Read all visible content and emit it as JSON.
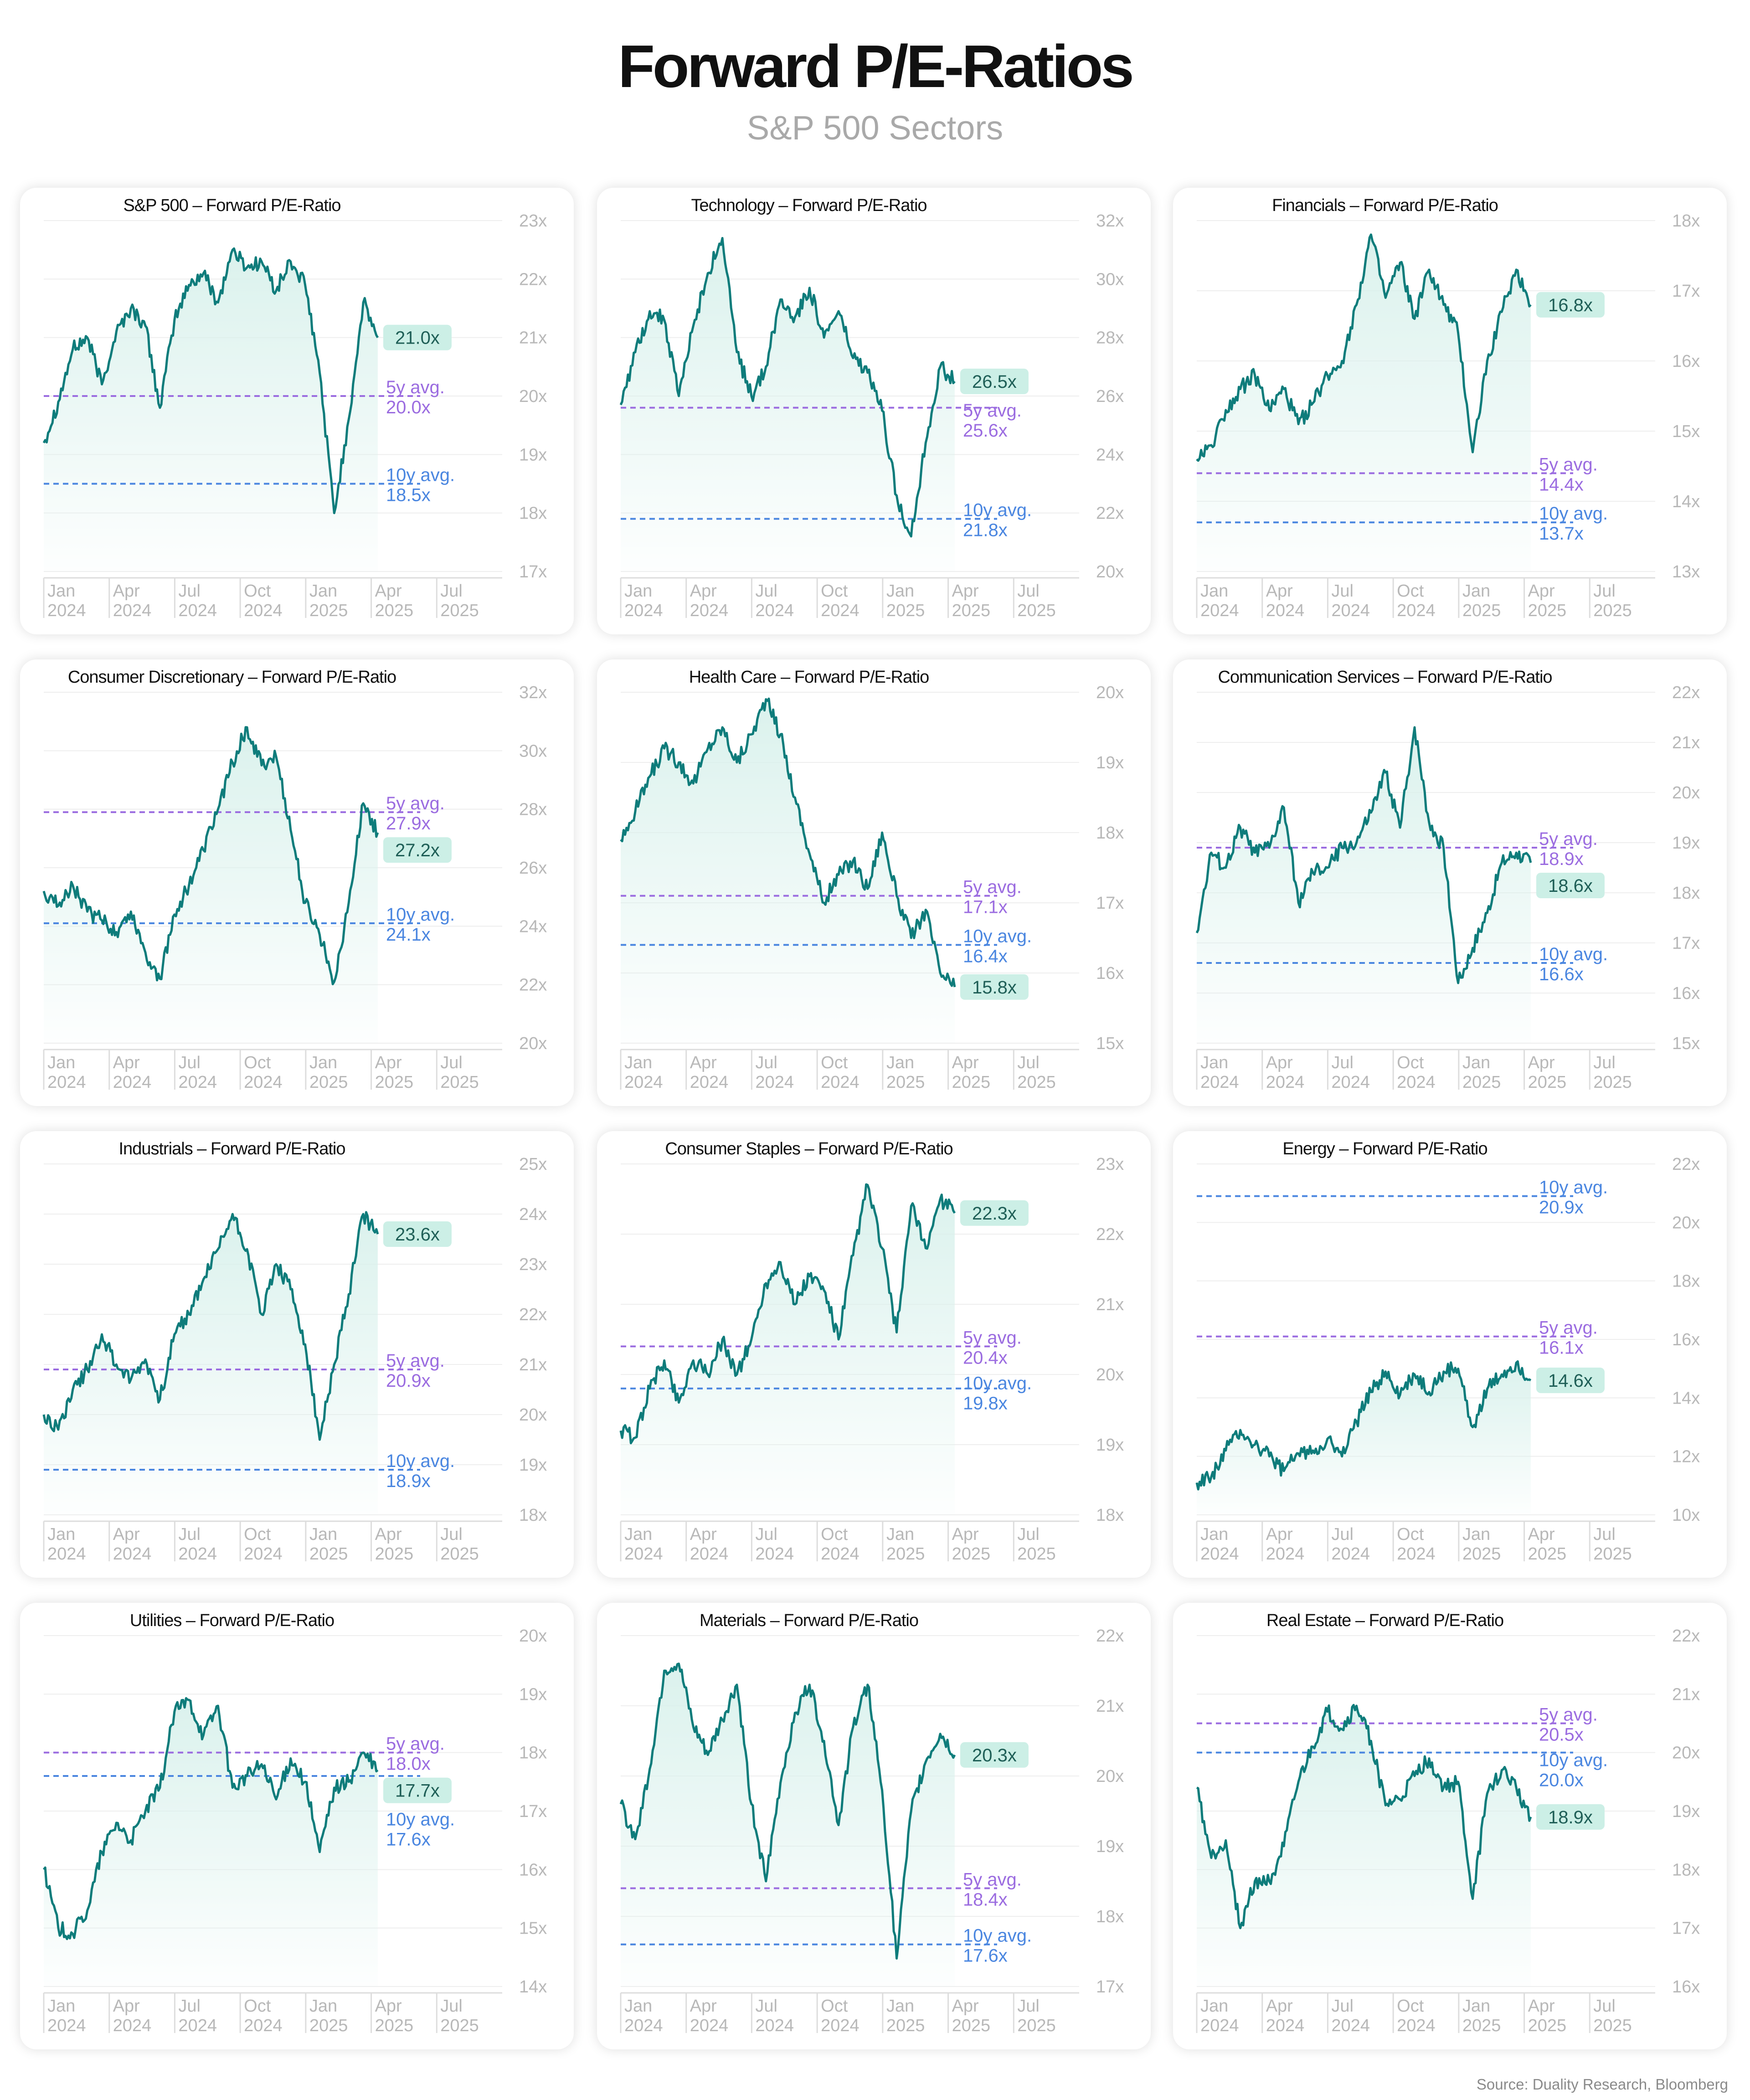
{
  "title": "Forward P/E-Ratios",
  "subtitle": "S&P 500 Sectors",
  "source": "Source: Duality Research, Bloomberg",
  "colors": {
    "line": "#0e7c7b",
    "fill": "#d9f1ec",
    "avg5": "#9b6ce0",
    "avg10": "#4a86e0",
    "value_badge_bg": "#ccefe6",
    "axis_text": "#b8b8b8"
  },
  "x_axis": {
    "ticks": [
      {
        "month": "Jan",
        "year": "2024"
      },
      {
        "month": "Apr",
        "year": "2024"
      },
      {
        "month": "Jul",
        "year": "2024"
      },
      {
        "month": "Oct",
        "year": "2024"
      },
      {
        "month": "Jan",
        "year": "2025"
      },
      {
        "month": "Apr",
        "year": "2025"
      },
      {
        "month": "Jul",
        "year": "2025"
      }
    ],
    "data_range": [
      "Jan 2024",
      "May 2025"
    ]
  },
  "chart_data": [
    {
      "type": "line",
      "title": "S&P 500 – Forward P/E-Ratio",
      "ylim": [
        17,
        23
      ],
      "yticks": [
        "17x",
        "18x",
        "19x",
        "20x",
        "21x",
        "22x",
        "23x"
      ],
      "current": 21.0,
      "current_label": "21.0x",
      "avg5": 20.0,
      "avg5_label": [
        "5y avg.",
        "20.0x"
      ],
      "avg10": 18.5,
      "avg10_label": [
        "10y avg.",
        "18.5x"
      ],
      "series": [
        19.2,
        19.9,
        20.8,
        21.0,
        20.2,
        21.1,
        21.5,
        21.2,
        19.8,
        21.3,
        21.9,
        22.1,
        21.6,
        22.5,
        22.2,
        22.3,
        21.8,
        22.3,
        21.9,
        20.4,
        18.0,
        19.6,
        21.6,
        21.0
      ]
    },
    {
      "type": "line",
      "title": "Technology – Forward P/E-Ratio",
      "ylim": [
        20,
        32
      ],
      "yticks": [
        "20x",
        "22x",
        "24x",
        "26x",
        "28x",
        "30x",
        "32x"
      ],
      "current": 26.5,
      "current_label": "26.5x",
      "avg5": 25.6,
      "avg5_label": [
        "5y avg.",
        "25.6x"
      ],
      "avg10": 21.8,
      "avg10_label": [
        "10y avg.",
        "21.8x"
      ],
      "series": [
        25.7,
        27.5,
        28.9,
        28.6,
        26.0,
        28.4,
        30.2,
        31.4,
        27.5,
        26.0,
        27.0,
        29.3,
        28.7,
        29.7,
        28.0,
        28.9,
        27.3,
        26.8,
        25.5,
        22.6,
        21.2,
        24.4,
        27.0,
        26.5
      ]
    },
    {
      "type": "line",
      "title": "Financials – Forward P/E-Ratio",
      "ylim": [
        13,
        18
      ],
      "yticks": [
        "13x",
        "14x",
        "15x",
        "16x",
        "17x",
        "18x"
      ],
      "current": 16.8,
      "current_label": "16.8x",
      "avg5": 14.4,
      "avg5_label": [
        "5y avg.",
        "14.4x"
      ],
      "avg10": 13.7,
      "avg10_label": [
        "10y avg.",
        "13.7x"
      ],
      "series": [
        14.6,
        14.8,
        15.3,
        15.6,
        15.8,
        15.3,
        15.6,
        15.1,
        15.4,
        15.8,
        16.0,
        16.8,
        17.8,
        16.9,
        17.4,
        16.6,
        17.3,
        16.8,
        16.4,
        14.7,
        16.0,
        16.7,
        17.3,
        16.8
      ]
    },
    {
      "type": "line",
      "title": "Consumer Discretionary – Forward P/E-Ratio",
      "ylim": [
        20,
        32
      ],
      "yticks": [
        "20x",
        "22x",
        "24x",
        "26x",
        "28x",
        "30x",
        "32x"
      ],
      "current": 27.2,
      "current_label": "27.2x",
      "avg5": 27.9,
      "avg5_label": [
        "5y avg.",
        "27.9x"
      ],
      "avg10": 24.1,
      "avg10_label": [
        "10y avg.",
        "24.1x"
      ],
      "series": [
        25.2,
        24.7,
        25.4,
        24.5,
        24.2,
        23.8,
        24.5,
        23.1,
        22.2,
        24.4,
        25.4,
        26.6,
        28.0,
        29.6,
        30.8,
        29.5,
        29.8,
        27.3,
        24.8,
        23.7,
        22.1,
        24.8,
        28.2,
        27.2
      ]
    },
    {
      "type": "line",
      "title": "Health Care – Forward P/E-Ratio",
      "ylim": [
        15,
        20
      ],
      "yticks": [
        "15x",
        "16x",
        "17x",
        "18x",
        "19x",
        "20x"
      ],
      "current": 15.8,
      "current_label": "15.8x",
      "avg5": 17.1,
      "avg5_label": [
        "5y avg.",
        "17.1x"
      ],
      "avg10": 16.4,
      "avg10_label": [
        "10y avg.",
        "16.4x"
      ],
      "series": [
        17.9,
        18.3,
        18.8,
        19.2,
        19.0,
        18.7,
        19.2,
        19.5,
        19.0,
        19.4,
        19.9,
        19.4,
        18.5,
        17.7,
        17.0,
        17.4,
        17.6,
        17.2,
        18.0,
        17.1,
        16.5,
        16.9,
        16.0,
        15.8
      ]
    },
    {
      "type": "line",
      "title": "Communication Services – Forward P/E-Ratio",
      "ylim": [
        15,
        22
      ],
      "yticks": [
        "15x",
        "16x",
        "17x",
        "18x",
        "19x",
        "20x",
        "21x",
        "22x"
      ],
      "current": 18.6,
      "current_label": "18.6x",
      "avg5": 18.9,
      "avg5_label": [
        "5y avg.",
        "18.9x"
      ],
      "avg10": 16.6,
      "avg10_label": [
        "10y avg.",
        "16.6x"
      ],
      "series": [
        17.2,
        18.8,
        18.5,
        19.3,
        18.8,
        18.9,
        19.7,
        17.8,
        18.4,
        18.5,
        18.9,
        19.0,
        19.6,
        20.4,
        19.3,
        21.3,
        19.4,
        18.9,
        16.2,
        16.9,
        17.6,
        18.6,
        18.8,
        18.6
      ]
    },
    {
      "type": "line",
      "title": "Industrials – Forward P/E-Ratio",
      "ylim": [
        18,
        25
      ],
      "yticks": [
        "18x",
        "19x",
        "20x",
        "21x",
        "22x",
        "23x",
        "24x",
        "25x"
      ],
      "current": 23.6,
      "current_label": "23.6x",
      "avg5": 20.9,
      "avg5_label": [
        "5y avg.",
        "20.9x"
      ],
      "avg10": 18.9,
      "avg10_label": [
        "10y avg.",
        "18.9x"
      ],
      "series": [
        20.0,
        19.7,
        20.5,
        20.9,
        21.6,
        21.0,
        20.7,
        21.1,
        20.3,
        21.6,
        22.0,
        22.7,
        23.3,
        24.0,
        23.3,
        22.0,
        23.0,
        22.5,
        21.4,
        19.5,
        21.0,
        22.4,
        24.0,
        23.6
      ]
    },
    {
      "type": "line",
      "title": "Consumer Staples – Forward P/E-Ratio",
      "ylim": [
        18,
        23
      ],
      "yticks": [
        "18x",
        "19x",
        "20x",
        "21x",
        "22x",
        "23x"
      ],
      "current": 22.3,
      "current_label": "22.3x",
      "avg5": 20.4,
      "avg5_label": [
        "5y avg.",
        "20.4x"
      ],
      "avg10": 19.8,
      "avg10_label": [
        "10y avg.",
        "19.8x"
      ],
      "series": [
        19.2,
        19.1,
        19.8,
        20.2,
        19.6,
        20.2,
        20.0,
        20.5,
        20.0,
        20.5,
        21.3,
        21.6,
        21.0,
        21.4,
        21.2,
        20.5,
        21.7,
        22.7,
        21.8,
        20.6,
        22.4,
        21.8,
        22.5,
        22.3
      ]
    },
    {
      "type": "line",
      "title": "Energy – Forward P/E-Ratio",
      "ylim": [
        10,
        22
      ],
      "yticks": [
        "10x",
        "12x",
        "14x",
        "16x",
        "18x",
        "20x",
        "22x"
      ],
      "current": 14.6,
      "current_label": "14.6x",
      "avg5": 16.1,
      "avg5_label": [
        "5y avg.",
        "16.1x"
      ],
      "avg10": 20.9,
      "avg10_label": [
        "10y avg.",
        "20.9x"
      ],
      "series": [
        11.1,
        11.3,
        12.2,
        12.9,
        12.4,
        12.0,
        11.5,
        12.1,
        12.2,
        12.6,
        12.0,
        13.2,
        14.2,
        14.9,
        14.1,
        14.8,
        14.2,
        14.9,
        15.0,
        13.0,
        14.3,
        14.8,
        15.2,
        14.6
      ]
    },
    {
      "type": "line",
      "title": "Utilities – Forward P/E-Ratio",
      "ylim": [
        14,
        20
      ],
      "yticks": [
        "14x",
        "15x",
        "16x",
        "17x",
        "18x",
        "19x",
        "20x"
      ],
      "current": 17.7,
      "current_label": "17.7x",
      "avg5": 18.0,
      "avg5_label": [
        "5y avg.",
        "18.0x"
      ],
      "avg10": 17.6,
      "avg10_label": [
        "10y avg.",
        "17.6x"
      ],
      "series": [
        16.0,
        15.0,
        14.9,
        15.3,
        16.3,
        16.8,
        16.5,
        17.0,
        17.4,
        18.7,
        18.9,
        18.3,
        18.8,
        17.4,
        17.6,
        17.8,
        17.2,
        17.9,
        17.5,
        16.3,
        17.4,
        17.5,
        18.0,
        17.7
      ]
    },
    {
      "type": "line",
      "title": "Materials – Forward P/E-Ratio",
      "ylim": [
        17,
        22
      ],
      "yticks": [
        "17x",
        "18x",
        "19x",
        "20x",
        "21x",
        "22x"
      ],
      "current": 20.3,
      "current_label": "20.3x",
      "avg5": 18.4,
      "avg5_label": [
        "5y avg.",
        "18.4x"
      ],
      "avg10": 17.6,
      "avg10_label": [
        "10y avg.",
        "17.6x"
      ],
      "series": [
        19.6,
        19.1,
        20.1,
        21.5,
        21.6,
        20.7,
        20.3,
        20.8,
        21.3,
        19.6,
        18.5,
        19.9,
        20.9,
        21.3,
        20.5,
        19.3,
        20.7,
        21.3,
        19.8,
        17.4,
        19.5,
        20.2,
        20.6,
        20.3
      ]
    },
    {
      "type": "line",
      "title": "Real Estate – Forward P/E-Ratio",
      "ylim": [
        16,
        22
      ],
      "yticks": [
        "16x",
        "17x",
        "18x",
        "19x",
        "20x",
        "21x",
        "22x"
      ],
      "current": 18.9,
      "current_label": "18.9x",
      "avg5": 20.5,
      "avg5_label": [
        "5y avg.",
        "20.5x"
      ],
      "avg10": 20.0,
      "avg10_label": [
        "10y avg.",
        "20.0x"
      ],
      "series": [
        19.4,
        18.2,
        18.5,
        17.0,
        17.8,
        17.8,
        18.4,
        19.5,
        20.1,
        20.7,
        20.4,
        20.8,
        20.2,
        19.1,
        19.2,
        19.6,
        19.9,
        19.4,
        19.5,
        17.5,
        19.3,
        19.7,
        19.4,
        18.9
      ]
    }
  ]
}
